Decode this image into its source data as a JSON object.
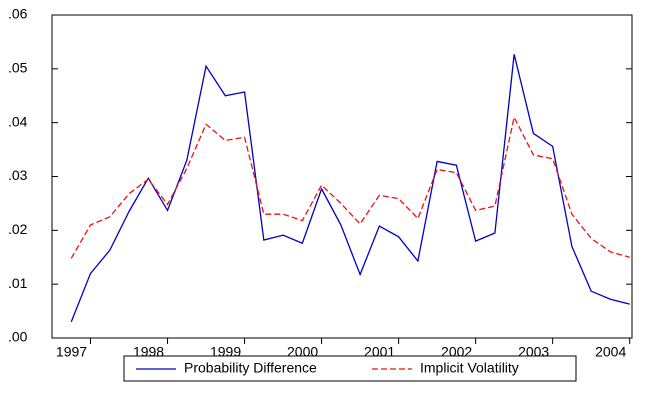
{
  "chart_data": {
    "type": "line",
    "x": [
      1996.75,
      1997,
      1997.25,
      1997.5,
      1997.75,
      1998,
      1998.25,
      1998.5,
      1998.75,
      1999,
      1999.25,
      1999.5,
      1999.75,
      2000,
      2000.25,
      2000.5,
      2000.75,
      2001,
      2001.25,
      2001.5,
      2001.75,
      2002,
      2002.25,
      2002.5,
      2002.75,
      2003,
      2003.25,
      2003.5,
      2003.75,
      2004
    ],
    "series": [
      {
        "name": "Probability Difference",
        "color": "#0000cc",
        "dash": "solid",
        "values": [
          0.003,
          0.012,
          0.0163,
          0.0235,
          0.0297,
          0.0237,
          0.033,
          0.0505,
          0.045,
          0.0457,
          0.0182,
          0.0191,
          0.0176,
          0.0277,
          0.021,
          0.0118,
          0.0208,
          0.0188,
          0.0143,
          0.0328,
          0.0321,
          0.018,
          0.0195,
          0.0527,
          0.038,
          0.0356,
          0.017,
          0.0087,
          0.0072,
          0.0063
        ]
      },
      {
        "name": "Implicit Volatility",
        "color": "#ee1111",
        "dash": "dashed",
        "values": [
          0.0148,
          0.021,
          0.0225,
          0.0268,
          0.0295,
          0.0248,
          0.0315,
          0.0397,
          0.0367,
          0.0373,
          0.023,
          0.023,
          0.0218,
          0.0284,
          0.025,
          0.0212,
          0.0265,
          0.0259,
          0.0222,
          0.0313,
          0.0307,
          0.0237,
          0.0245,
          0.041,
          0.034,
          0.0333,
          0.023,
          0.0185,
          0.016,
          0.015
        ]
      }
    ],
    "xlim": [
      1996.5,
      2004.03
    ],
    "xticks": [
      1997,
      1998,
      1999,
      2000,
      2001,
      2002,
      2003,
      2004
    ],
    "ylim": [
      0,
      0.06
    ],
    "yticks": [
      {
        "value": 0,
        "label": ".00"
      },
      {
        "value": 0.01,
        "label": ".01"
      },
      {
        "value": 0.02,
        "label": ".02"
      },
      {
        "value": 0.03,
        "label": ".03"
      },
      {
        "value": 0.04,
        "label": ".04"
      },
      {
        "value": 0.05,
        "label": ".05"
      },
      {
        "value": 0.06,
        "label": ".06"
      }
    ],
    "grid": false,
    "legend": "bottom"
  }
}
